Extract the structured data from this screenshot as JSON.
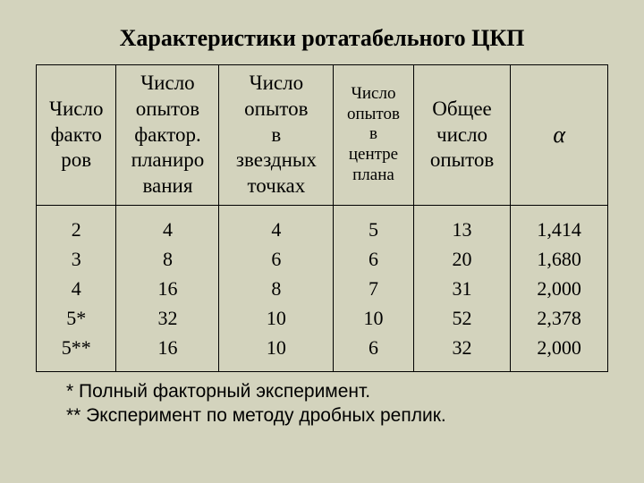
{
  "title": "Характеристики ротатабельного ЦКП",
  "columns": {
    "c0": "Число\nфакто\nров",
    "c1": "Число\nопытов\nфактор.\nпланиро\nвания",
    "c2": "Число\nопытов\nв\nзвездных\nточках",
    "c3": "Число\nопытов\nв\nцентре\nплана",
    "c4": "Общее\nчисло\nопытов",
    "c5": "α"
  },
  "col_widths_pct": [
    14,
    18,
    20,
    14,
    17,
    17
  ],
  "header_font_small": [
    false,
    false,
    false,
    true,
    false,
    false
  ],
  "rows": [
    [
      "2",
      "4",
      "4",
      "5",
      "13",
      "1,414"
    ],
    [
      "3",
      "8",
      "6",
      "6",
      "20",
      "1,680"
    ],
    [
      "4",
      "16",
      "8",
      "7",
      "31",
      "2,000"
    ],
    [
      "5*",
      "32",
      "10",
      "10",
      "52",
      "2,378"
    ],
    [
      "5**",
      "16",
      "10",
      "6",
      "32",
      "2,000"
    ]
  ],
  "footnotes": {
    "f1": "* Полный факторный эксперимент.",
    "f2": "** Эксперимент по методу дробных реплик."
  },
  "colors": {
    "background": "#d3d3bd",
    "text": "#000000",
    "border": "#000000"
  }
}
